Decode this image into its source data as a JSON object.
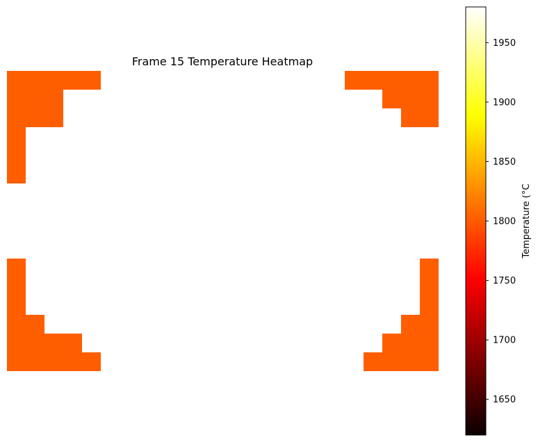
{
  "chart_data": {
    "type": "heatmap",
    "title": "Frame 15 Temperature Heatmap",
    "grid_size": [
      16,
      23
    ],
    "colormap": "hot",
    "colorbar": {
      "label": "Temperature (°C",
      "min": 1620,
      "max": 1980,
      "ticks": [
        1650,
        1700,
        1750,
        1800,
        1850,
        1900,
        1950
      ]
    },
    "cell_value": 1815,
    "cell_color": "#ff5e00",
    "cells": [
      [
        0,
        0
      ],
      [
        0,
        1
      ],
      [
        0,
        2
      ],
      [
        0,
        3
      ],
      [
        0,
        4
      ],
      [
        1,
        0
      ],
      [
        1,
        1
      ],
      [
        1,
        2
      ],
      [
        2,
        0
      ],
      [
        2,
        1
      ],
      [
        2,
        2
      ],
      [
        3,
        0
      ],
      [
        4,
        0
      ],
      [
        5,
        0
      ],
      [
        10,
        0
      ],
      [
        11,
        0
      ],
      [
        12,
        0
      ],
      [
        13,
        0
      ],
      [
        13,
        1
      ],
      [
        14,
        0
      ],
      [
        14,
        1
      ],
      [
        14,
        2
      ],
      [
        14,
        3
      ],
      [
        15,
        0
      ],
      [
        15,
        1
      ],
      [
        15,
        2
      ],
      [
        15,
        3
      ],
      [
        15,
        4
      ],
      [
        0,
        18
      ],
      [
        0,
        19
      ],
      [
        0,
        20
      ],
      [
        0,
        21
      ],
      [
        0,
        22
      ],
      [
        1,
        20
      ],
      [
        1,
        21
      ],
      [
        1,
        22
      ],
      [
        2,
        21
      ],
      [
        2,
        22
      ],
      [
        10,
        22
      ],
      [
        11,
        22
      ],
      [
        12,
        22
      ],
      [
        13,
        21
      ],
      [
        13,
        22
      ],
      [
        14,
        20
      ],
      [
        14,
        21
      ],
      [
        14,
        22
      ],
      [
        15,
        19
      ],
      [
        15,
        20
      ],
      [
        15,
        21
      ],
      [
        15,
        22
      ]
    ],
    "axes_visible": false
  }
}
